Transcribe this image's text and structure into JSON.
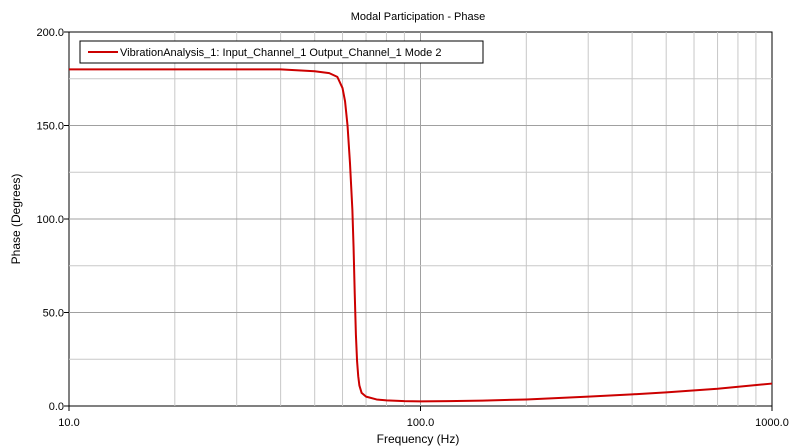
{
  "chart_data": {
    "type": "line",
    "title": "Modal Participation - Phase",
    "xlabel": "Frequency (Hz)",
    "ylabel": "Phase (Degrees)",
    "x_scale": "log",
    "xlim": [
      10,
      1000
    ],
    "ylim": [
      0,
      200
    ],
    "x_ticks": [
      10,
      100,
      1000
    ],
    "x_tick_labels": [
      "10.0",
      "100.0",
      "1000.0"
    ],
    "y_ticks": [
      0,
      50,
      100,
      150,
      200
    ],
    "y_tick_labels": [
      "0.0",
      "50.0",
      "100.0",
      "150.0",
      "200.0"
    ],
    "grid": true,
    "legend_position": "top-left",
    "series": [
      {
        "name": "VibrationAnalysis_1: Input_Channel_1 Output_Channel_1 Mode 2",
        "color": "#cc0000",
        "x": [
          10,
          20,
          30,
          40,
          50,
          55,
          58,
          60,
          61,
          62,
          63,
          64,
          64.5,
          65,
          65.5,
          66,
          66.5,
          67,
          68,
          70,
          75,
          80,
          90,
          100,
          120,
          150,
          200,
          300,
          400,
          500,
          700,
          1000
        ],
        "y": [
          180,
          180,
          180,
          180,
          179,
          178,
          176,
          170,
          163,
          150,
          130,
          105,
          85,
          60,
          38,
          24,
          16,
          11,
          7,
          5,
          3.5,
          3,
          2.6,
          2.5,
          2.6,
          2.9,
          3.5,
          5,
          6.2,
          7.3,
          9.2,
          12
        ]
      }
    ]
  }
}
